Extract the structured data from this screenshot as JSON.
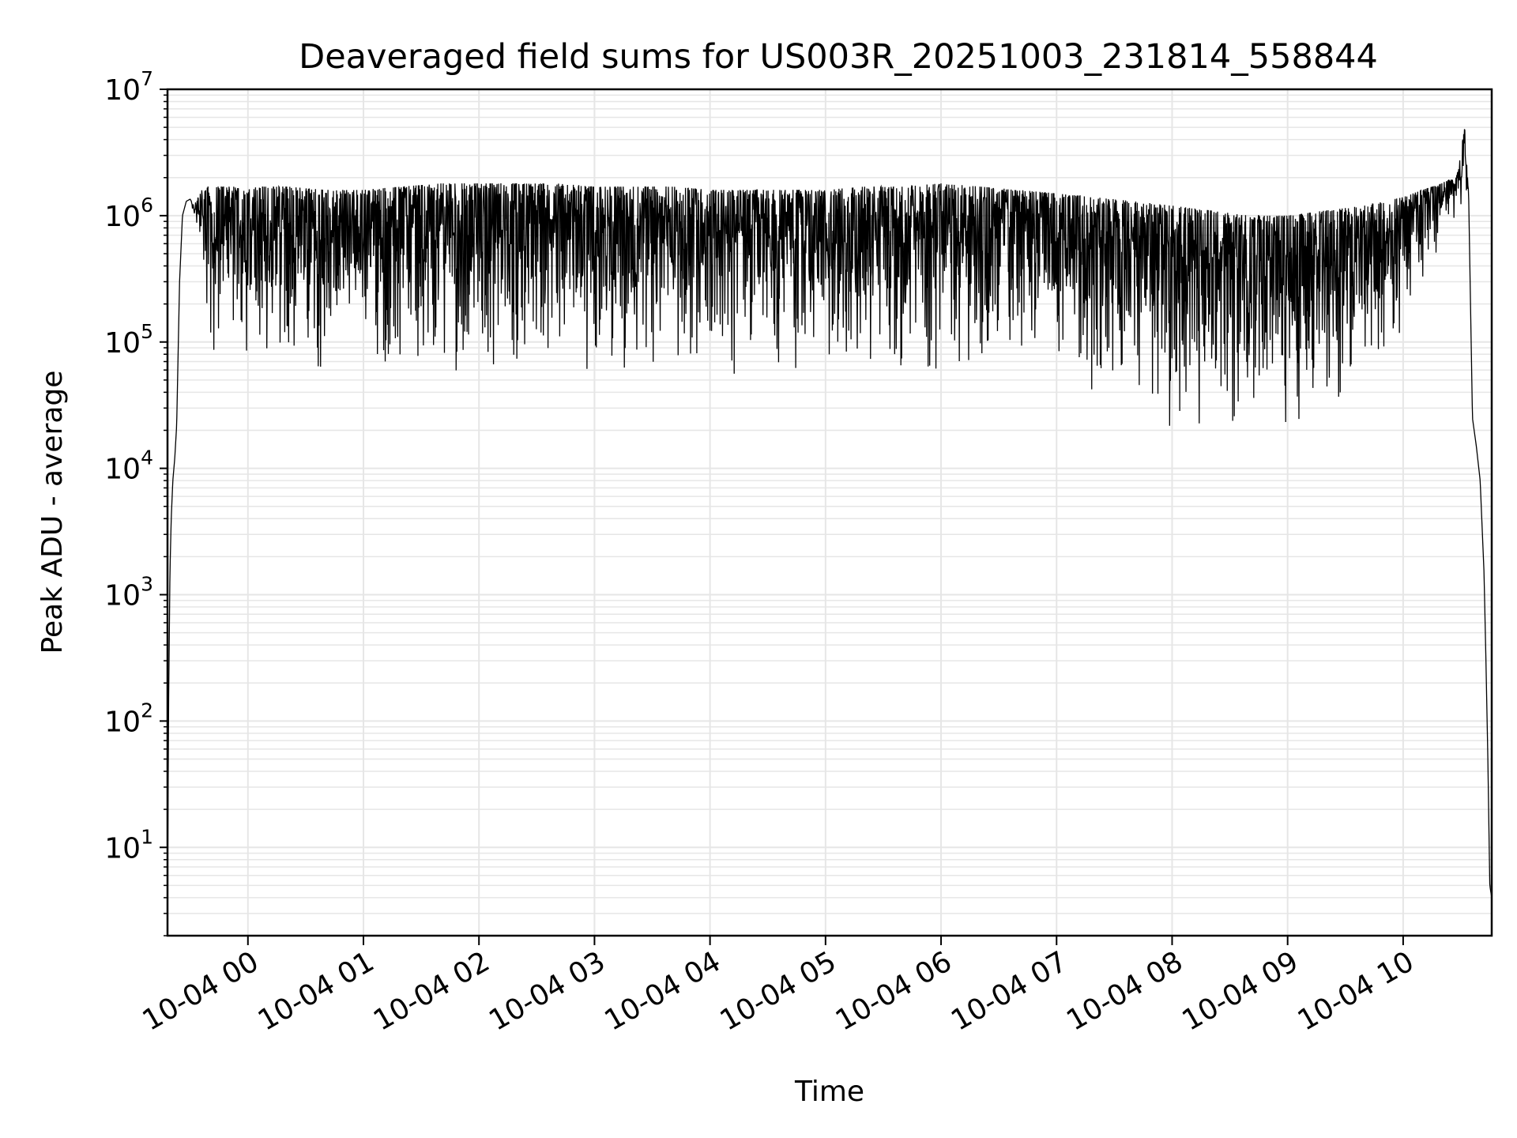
{
  "chart_data": {
    "type": "line",
    "title": "Deaveraged field sums for US003R_20251003_231814_558844",
    "xlabel": "Time",
    "ylabel": "Peak ADU - average",
    "yscale": "log",
    "ylim": [
      2,
      10000000
    ],
    "xlim": [
      "2025-10-03T23:18:14",
      "2025-10-04T10:46:00"
    ],
    "grid": true,
    "legend": "none",
    "line_color": "#000000",
    "grid_color": "#e6e6e6",
    "xticks": [
      {
        "t": "2025-10-04T00:00:00",
        "label": "10-04 00"
      },
      {
        "t": "2025-10-04T01:00:00",
        "label": "10-04 01"
      },
      {
        "t": "2025-10-04T02:00:00",
        "label": "10-04 02"
      },
      {
        "t": "2025-10-04T03:00:00",
        "label": "10-04 03"
      },
      {
        "t": "2025-10-04T04:00:00",
        "label": "10-04 04"
      },
      {
        "t": "2025-10-04T05:00:00",
        "label": "10-04 05"
      },
      {
        "t": "2025-10-04T06:00:00",
        "label": "10-04 06"
      },
      {
        "t": "2025-10-04T07:00:00",
        "label": "10-04 07"
      },
      {
        "t": "2025-10-04T08:00:00",
        "label": "10-04 08"
      },
      {
        "t": "2025-10-04T09:00:00",
        "label": "10-04 09"
      },
      {
        "t": "2025-10-04T10:00:00",
        "label": "10-04 10"
      }
    ],
    "yticks": [
      {
        "value": 10,
        "base": "10",
        "exp": "1"
      },
      {
        "value": 100,
        "base": "10",
        "exp": "2"
      },
      {
        "value": 1000,
        "base": "10",
        "exp": "3"
      },
      {
        "value": 10000,
        "base": "10",
        "exp": "4"
      },
      {
        "value": 100000,
        "base": "10",
        "exp": "5"
      },
      {
        "value": 1000000,
        "base": "10",
        "exp": "6"
      },
      {
        "value": 10000000,
        "base": "10",
        "exp": "7"
      }
    ],
    "series": [
      {
        "x": [
          "2025-10-03T23:18:14",
          "2025-10-03T23:18:50",
          "2025-10-03T23:19:30",
          "2025-10-03T23:20:10",
          "2025-10-03T23:21:00",
          "2025-10-03T23:22:00",
          "2025-10-03T23:23:00",
          "2025-10-03T23:24:30",
          "2025-10-03T23:26:00",
          "2025-10-03T23:28:00",
          "2025-10-03T23:30:00",
          "2025-10-03T23:32:00",
          "2025-10-03T23:34:00",
          "2025-10-03T23:36:00",
          "2025-10-03T23:38:00",
          "2025-10-03T23:40:00",
          "2025-10-03T23:43:00",
          "2025-10-03T23:50:00",
          "2025-10-04T00:00:00",
          "2025-10-04T00:20:00",
          "2025-10-04T00:40:00",
          "2025-10-04T01:00:00",
          "2025-10-04T01:20:00",
          "2025-10-04T01:40:00",
          "2025-10-04T02:00:00",
          "2025-10-04T02:20:00",
          "2025-10-04T02:40:00",
          "2025-10-04T03:00:00",
          "2025-10-04T03:20:00",
          "2025-10-04T03:40:00",
          "2025-10-04T04:00:00",
          "2025-10-04T04:20:00",
          "2025-10-04T04:40:00",
          "2025-10-04T05:00:00",
          "2025-10-04T05:20:00",
          "2025-10-04T05:40:00",
          "2025-10-04T06:00:00",
          "2025-10-04T06:20:00",
          "2025-10-04T06:40:00",
          "2025-10-04T07:00:00",
          "2025-10-04T07:20:00",
          "2025-10-04T07:40:00",
          "2025-10-04T08:00:00",
          "2025-10-04T08:20:00",
          "2025-10-04T08:40:00",
          "2025-10-04T09:00:00",
          "2025-10-04T09:20:00",
          "2025-10-04T09:40:00",
          "2025-10-04T10:00:00",
          "2025-10-04T10:10:00",
          "2025-10-04T10:20:00",
          "2025-10-04T10:28:00",
          "2025-10-04T10:32:00",
          "2025-10-04T10:34:00",
          "2025-10-04T10:36:00",
          "2025-10-04T10:38:00",
          "2025-10-04T10:40:00",
          "2025-10-04T10:42:00",
          "2025-10-04T10:43:00",
          "2025-10-04T10:44:00",
          "2025-10-04T10:45:00",
          "2025-10-04T10:46:00"
        ],
        "max": [
          4,
          150,
          1500,
          4000,
          8000,
          12000,
          22000,
          300000,
          1000000,
          1300000,
          1350000,
          1200000,
          1400000,
          1600000,
          1700000,
          1700000,
          1700000,
          1700000,
          1700000,
          1700000,
          1600000,
          1600000,
          1700000,
          1800000,
          1800000,
          1800000,
          1800000,
          1700000,
          1700000,
          1700000,
          1600000,
          1600000,
          1600000,
          1600000,
          1700000,
          1700000,
          1800000,
          1700000,
          1600000,
          1500000,
          1400000,
          1300000,
          1200000,
          1100000,
          1000000,
          1000000,
          1100000,
          1200000,
          1400000,
          1600000,
          1800000,
          2100000,
          5000000,
          1500000,
          25000,
          15000,
          8000,
          1500,
          300,
          50,
          5,
          4
        ],
        "min": [
          4,
          150,
          1500,
          4000,
          8000,
          12000,
          22000,
          300000,
          1000000,
          1300000,
          1300000,
          900000,
          700000,
          400000,
          200000,
          100000,
          60000,
          55000,
          50000,
          55000,
          55000,
          55000,
          55000,
          55000,
          55000,
          55000,
          55000,
          55000,
          55000,
          55000,
          55000,
          55000,
          55000,
          55000,
          55000,
          55000,
          55000,
          55000,
          55000,
          50000,
          35000,
          25000,
          20000,
          20000,
          20000,
          20000,
          20000,
          30000,
          100000,
          300000,
          600000,
          900000,
          1300000,
          1500000,
          25000,
          15000,
          8000,
          1500,
          300,
          50,
          5,
          4
        ]
      }
    ]
  }
}
